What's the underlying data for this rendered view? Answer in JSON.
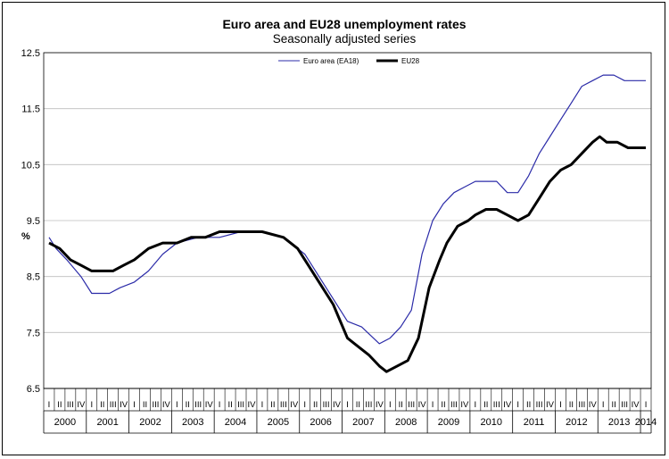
{
  "chart_data": {
    "type": "line",
    "title": "Euro area and EU28 unemployment rates",
    "subtitle": "Seasonally adjusted series",
    "ylabel": "%",
    "xlabel": "",
    "ylim": [
      6.5,
      12.5
    ],
    "yticks": [
      "12.5",
      "11.5",
      "10.5",
      "9.5",
      "8.5",
      "7.5",
      "6.5"
    ],
    "ytick_values": [
      12.5,
      11.5,
      10.5,
      9.5,
      8.5,
      7.5,
      6.5
    ],
    "quarters": [
      "I",
      "II",
      "III",
      "IV"
    ],
    "years": [
      "2000",
      "2001",
      "2002",
      "2003",
      "2004",
      "2005",
      "2006",
      "2007",
      "2008",
      "2009",
      "2010",
      "2011",
      "2012",
      "2013",
      "2014"
    ],
    "x_start": "2000-01",
    "x_end": "2014-01",
    "legend_position": "top",
    "series": [
      {
        "name": "Euro area (EA18)",
        "color": "#2b2ba8",
        "points": [
          [
            0,
            9.2
          ],
          [
            2,
            9.0
          ],
          [
            5,
            8.8
          ],
          [
            9,
            8.5
          ],
          [
            12,
            8.2
          ],
          [
            17,
            8.2
          ],
          [
            20,
            8.3
          ],
          [
            24,
            8.4
          ],
          [
            28,
            8.6
          ],
          [
            32,
            8.9
          ],
          [
            36,
            9.1
          ],
          [
            42,
            9.2
          ],
          [
            48,
            9.2
          ],
          [
            54,
            9.3
          ],
          [
            60,
            9.3
          ],
          [
            66,
            9.2
          ],
          [
            72,
            8.9
          ],
          [
            78,
            8.3
          ],
          [
            84,
            7.7
          ],
          [
            88,
            7.6
          ],
          [
            93,
            7.3
          ],
          [
            96,
            7.4
          ],
          [
            99,
            7.6
          ],
          [
            102,
            7.9
          ],
          [
            105,
            8.9
          ],
          [
            108,
            9.5
          ],
          [
            111,
            9.8
          ],
          [
            114,
            10.0
          ],
          [
            117,
            10.1
          ],
          [
            120,
            10.2
          ],
          [
            123,
            10.2
          ],
          [
            126,
            10.2
          ],
          [
            129,
            10.0
          ],
          [
            132,
            10.0
          ],
          [
            135,
            10.3
          ],
          [
            138,
            10.7
          ],
          [
            141,
            11.0
          ],
          [
            144,
            11.3
          ],
          [
            147,
            11.6
          ],
          [
            150,
            11.9
          ],
          [
            153,
            12.0
          ],
          [
            156,
            12.1
          ],
          [
            159,
            12.1
          ],
          [
            162,
            12.0
          ],
          [
            168,
            12.0
          ]
        ]
      },
      {
        "name": "EU28",
        "color": "#000000",
        "points": [
          [
            0,
            9.1
          ],
          [
            3,
            9.0
          ],
          [
            6,
            8.8
          ],
          [
            9,
            8.7
          ],
          [
            12,
            8.6
          ],
          [
            18,
            8.6
          ],
          [
            21,
            8.7
          ],
          [
            24,
            8.8
          ],
          [
            28,
            9.0
          ],
          [
            32,
            9.1
          ],
          [
            36,
            9.1
          ],
          [
            40,
            9.2
          ],
          [
            44,
            9.2
          ],
          [
            48,
            9.3
          ],
          [
            54,
            9.3
          ],
          [
            60,
            9.3
          ],
          [
            66,
            9.2
          ],
          [
            70,
            9.0
          ],
          [
            75,
            8.5
          ],
          [
            80,
            8.0
          ],
          [
            84,
            7.4
          ],
          [
            86,
            7.3
          ],
          [
            90,
            7.1
          ],
          [
            93,
            6.9
          ],
          [
            95,
            6.8
          ],
          [
            98,
            6.9
          ],
          [
            101,
            7.0
          ],
          [
            104,
            7.4
          ],
          [
            107,
            8.3
          ],
          [
            110,
            8.8
          ],
          [
            112,
            9.1
          ],
          [
            115,
            9.4
          ],
          [
            118,
            9.5
          ],
          [
            120,
            9.6
          ],
          [
            123,
            9.7
          ],
          [
            126,
            9.7
          ],
          [
            129,
            9.6
          ],
          [
            132,
            9.5
          ],
          [
            135,
            9.6
          ],
          [
            138,
            9.9
          ],
          [
            141,
            10.2
          ],
          [
            144,
            10.4
          ],
          [
            147,
            10.5
          ],
          [
            150,
            10.7
          ],
          [
            153,
            10.9
          ],
          [
            155,
            11.0
          ],
          [
            157,
            10.9
          ],
          [
            160,
            10.9
          ],
          [
            163,
            10.8
          ],
          [
            168,
            10.8
          ]
        ]
      }
    ]
  }
}
